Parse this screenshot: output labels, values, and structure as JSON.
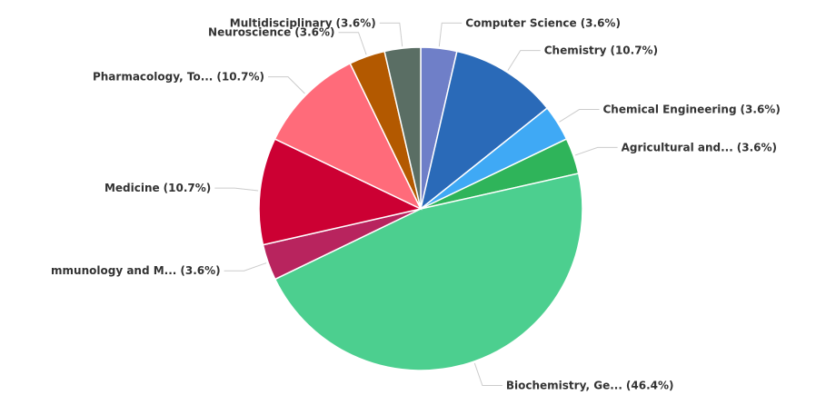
{
  "chart_data": {
    "type": "pie",
    "categories": [
      "Computer Science",
      "Chemistry",
      "Chemical Engineering",
      "Agricultural and...",
      "Biochemistry, Ge...",
      "mmunology and M...",
      "Medicine",
      "Pharmacology, To...",
      "Neuroscience",
      "Multidisciplinary"
    ],
    "values": [
      3.6,
      10.7,
      3.6,
      3.6,
      46.4,
      3.6,
      10.7,
      10.7,
      3.6,
      3.6
    ],
    "value_labels": [
      "(3.6%)",
      "(10.7%)",
      "(3.6%)",
      "(3.6%)",
      "(46.4%)",
      "(3.6%)",
      "(10.7%)",
      "(10.7%)",
      "(3.6%)",
      "(3.6%)"
    ],
    "colors": [
      "#6f7fc8",
      "#2a6ab8",
      "#3fa9f5",
      "#2fb45a",
      "#4ccf8f",
      "#b8245e",
      "#cc0033",
      "#ff6b7a",
      "#b35900",
      "#5a6e64"
    ]
  }
}
